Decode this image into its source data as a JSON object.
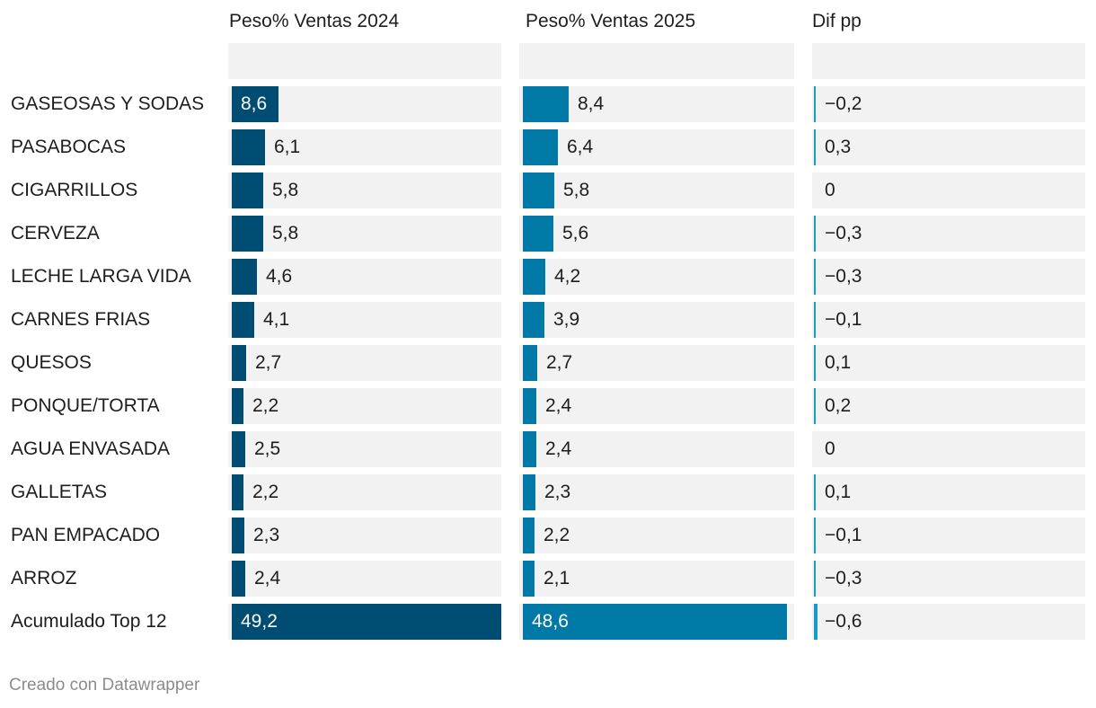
{
  "chart_data": {
    "type": "table",
    "columns": [
      "Peso% Ventas 2024",
      "Peso% Ventas 2025",
      "Dif pp"
    ],
    "rows": [
      {
        "label": "GASEOSAS Y SODAS",
        "v2024": 8.6,
        "v2025": 8.4,
        "dif": -0.2,
        "t2024": "8,6",
        "t2025": "8,4",
        "tdif": "−0,2"
      },
      {
        "label": "PASABOCAS",
        "v2024": 6.1,
        "v2025": 6.4,
        "dif": 0.3,
        "t2024": "6,1",
        "t2025": "6,4",
        "tdif": "0,3"
      },
      {
        "label": "CIGARRILLOS",
        "v2024": 5.8,
        "v2025": 5.8,
        "dif": 0,
        "t2024": "5,8",
        "t2025": "5,8",
        "tdif": "0"
      },
      {
        "label": "CERVEZA",
        "v2024": 5.8,
        "v2025": 5.6,
        "dif": -0.3,
        "t2024": "5,8",
        "t2025": "5,6",
        "tdif": "−0,3"
      },
      {
        "label": "LECHE LARGA VIDA",
        "v2024": 4.6,
        "v2025": 4.2,
        "dif": -0.3,
        "t2024": "4,6",
        "t2025": "4,2",
        "tdif": "−0,3"
      },
      {
        "label": "CARNES FRIAS",
        "v2024": 4.1,
        "v2025": 3.9,
        "dif": -0.1,
        "t2024": "4,1",
        "t2025": "3,9",
        "tdif": "−0,1"
      },
      {
        "label": "QUESOS",
        "v2024": 2.7,
        "v2025": 2.7,
        "dif": 0.1,
        "t2024": "2,7",
        "t2025": "2,7",
        "tdif": "0,1"
      },
      {
        "label": "PONQUE/TORTA",
        "v2024": 2.2,
        "v2025": 2.4,
        "dif": 0.2,
        "t2024": "2,2",
        "t2025": "2,4",
        "tdif": "0,2"
      },
      {
        "label": "AGUA ENVASADA",
        "v2024": 2.5,
        "v2025": 2.4,
        "dif": 0,
        "t2024": "2,5",
        "t2025": "2,4",
        "tdif": "0"
      },
      {
        "label": "GALLETAS",
        "v2024": 2.2,
        "v2025": 2.3,
        "dif": 0.1,
        "t2024": "2,2",
        "t2025": "2,3",
        "tdif": "0,1"
      },
      {
        "label": "PAN EMPACADO",
        "v2024": 2.3,
        "v2025": 2.2,
        "dif": -0.1,
        "t2024": "2,3",
        "t2025": "2,2",
        "tdif": "−0,1"
      },
      {
        "label": "ARROZ",
        "v2024": 2.4,
        "v2025": 2.1,
        "dif": -0.3,
        "t2024": "2,4",
        "t2025": "2,1",
        "tdif": "−0,3"
      },
      {
        "label": "Acumulado Top 12",
        "v2024": 49.2,
        "v2025": 48.6,
        "dif": -0.6,
        "t2024": "49,2",
        "t2025": "48,6",
        "tdif": "−0,6"
      }
    ],
    "colors": {
      "col2024": "#004d73",
      "col2025": "#0079a6",
      "dif": "#1a9bc7",
      "background": "#f2f2f2"
    },
    "footer": "Creado con Datawrapper"
  }
}
